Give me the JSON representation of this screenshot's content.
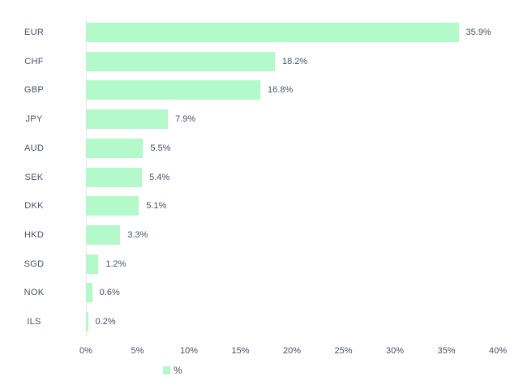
{
  "chart_data": {
    "type": "bar",
    "orientation": "horizontal",
    "title": "",
    "xlabel": "",
    "ylabel": "",
    "categories": [
      "EUR",
      "CHF",
      "GBP",
      "JPY",
      "AUD",
      "SEK",
      "DKK",
      "HKD",
      "SGD",
      "NOK",
      "ILS"
    ],
    "values": [
      35.9,
      18.2,
      16.8,
      7.9,
      5.5,
      5.4,
      5.1,
      3.3,
      1.2,
      0.6,
      0.2
    ],
    "data_labels": [
      "35.9%",
      "18.2%",
      "16.8%",
      "7.9%",
      "5.5%",
      "5.4%",
      "5.1%",
      "3.3%",
      "1.2%",
      "0.6%",
      "0.2%"
    ],
    "x_ticks": [
      "0%",
      "5%",
      "10%",
      "15%",
      "20%",
      "25%",
      "30%",
      "35%",
      "40%"
    ],
    "xlim": [
      0,
      40
    ],
    "grid": false,
    "legend": {
      "label": "%",
      "position": "bottom"
    },
    "colors": {
      "bar": "#B3F9CA",
      "text": "#44546A",
      "axis_line": "#E7E9EE",
      "background": "#FFFFFF"
    }
  }
}
